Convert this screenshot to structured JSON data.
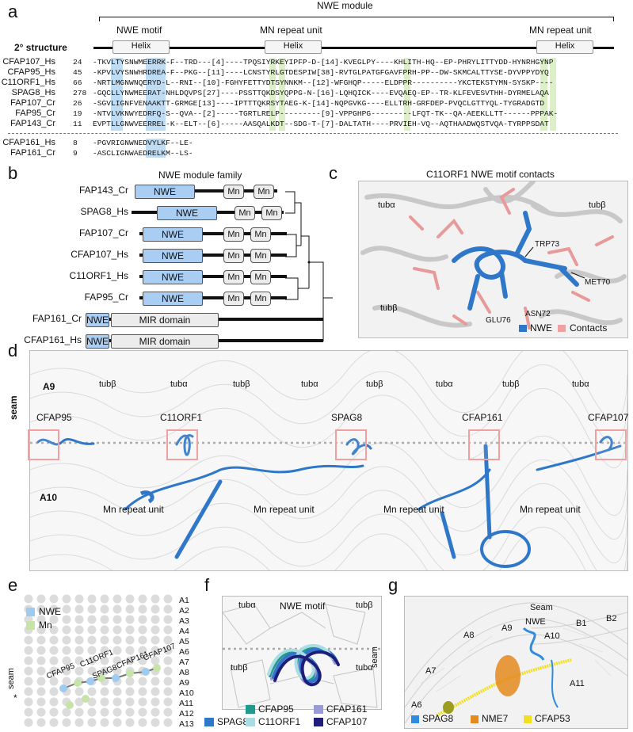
{
  "panel_a": {
    "letter": "a",
    "module_title": "NWE module",
    "motif_label": "NWE motif",
    "mn_label_1": "MN repeat unit",
    "mn_label_2": "MN repeat unit",
    "structure_label": "2° structure",
    "helix_label": "Helix",
    "rows": [
      {
        "name": "CFAP107_Hs",
        "num": "24",
        "seq": "-TKVLTYSNWMEERRK-F--TRD---[4]----TPQSIYRKEYIPFP-D-[14]-KVEGLPY----KHLITH-HQ--EP-PHRYLITTYDD-HYNRHGYNP"
      },
      {
        "name": "CFAP95_Hs",
        "num": "45",
        "seq": "-KPVLVYSNWHRDREA-F--PKG--[11]----LCNSTYRLGTDESPIW[38]-RVTGLPATGFGAVFPRH-PP--DW-SKMCALTTYSE-DYVPPYDYQ"
      },
      {
        "name": "C11ORF1_Hs",
        "num": "66",
        "seq": "-NRTLMGNWNQERYD-L--RNI--[10]-FGHYFETTYDTSYNNKM--[12]-WFGHQP-----ELDPPR----------YKCTEKSTYMN-SYSKP----"
      },
      {
        "name": "SPAG8_Hs",
        "num": "278",
        "seq": "-GQCLLYNWMEERAT-NHLDQVPS[27]----PSSTTQKDSYQPPG-N-[16]-LQHQICK----EVQAEQ-EP--TR-KLFEVESVTHH-DYRMELAQA"
      },
      {
        "name": "FAP107_Cr",
        "num": "26",
        "seq": "-SGVLIGNFVENAAKTT-GRMGE[13]----IPTTTQKRSYTAEG-K-[14]-NQPGVKG----ELLTRH-GRFDEP-PVQCLGTTYQL-TYGRADGTD"
      },
      {
        "name": "FAP95_Cr",
        "num": "19",
        "seq": "-NTVLVKNWYEDRFQ-S--QVA--[2]-----TGRTLRELP---------[9]-VPPGHPG---------LFQT-TK--QA-AEEKLLTT------PPPAK-"
      },
      {
        "name": "FAP143_Cr",
        "num": "11",
        "seq": "EVPTLLGNWVEERREL-K--ELT--[6]-----AASQALKDT--SDG-T-[7]-DALTATH----PRVIEH-VQ--AQTHAADWQSTVQA-TYRPPSDAT"
      },
      {
        "name": "CFAP161_Hs",
        "num": "8",
        "seq": "-PGVRIGNWNEDVYLKF--LE-"
      },
      {
        "name": "FAP161_Cr",
        "num": "9",
        "seq": "-ASCLIGNWAEDRELKM--LS-"
      }
    ]
  },
  "panel_b": {
    "letter": "b",
    "title": "NWE module family",
    "rows": [
      {
        "name": "FAP143_Cr",
        "nwe": "NWE",
        "mn": "Mn"
      },
      {
        "name": "SPAG8_Hs",
        "nwe": "NWE",
        "mn": "Mn"
      },
      {
        "name": "FAP107_Cr",
        "nwe": "NWE",
        "mn": "Mn"
      },
      {
        "name": "CFAP107_Hs",
        "nwe": "NWE",
        "mn": "Mn"
      },
      {
        "name": "C11ORF1_Hs",
        "nwe": "NWE",
        "mn": "Mn"
      },
      {
        "name": "FAP95_Cr",
        "nwe": "NWE",
        "mn": "Mn"
      },
      {
        "name": "FAP161_Cr",
        "nwe": "NWE",
        "mir": "MIR domain"
      },
      {
        "name": "CFAP161_Hs",
        "nwe": "NWE",
        "mir": "MIR domain"
      }
    ]
  },
  "panel_c": {
    "letter": "c",
    "title": "C11ORF1 NWE motif contacts",
    "labels": [
      "tubα",
      "tubβ",
      "tubβ",
      "TRP73",
      "MET70",
      "ASN72",
      "GLU76"
    ],
    "legend_nwe": "NWE",
    "legend_contacts": "Contacts",
    "colors": {
      "nwe": "#2f77c9",
      "contacts": "#f0a0a0"
    }
  },
  "panel_d": {
    "letter": "d",
    "row_labels": [
      "A9",
      "A10"
    ],
    "seam_label": "seam",
    "tub_labels": [
      "tubβ",
      "tubα",
      "tubβ",
      "tubα",
      "tubβ",
      "tubα",
      "tubβ",
      "tubα"
    ],
    "proteins": [
      "CFAP95",
      "C11ORF1",
      "SPAG8",
      "CFAP161",
      "CFAP107"
    ],
    "mn_labels": [
      "Mn repeat unit",
      "Mn repeat unit",
      "Mn repeat unit",
      "Mn repeat unit"
    ]
  },
  "panel_e": {
    "letter": "e",
    "legend_nwe": "NWE",
    "legend_mn": "Mn",
    "seam_label": "seam",
    "star": "*",
    "proteins": [
      "CFAP95",
      "C11ORF1",
      "SPAG8",
      "CFAP161",
      "CFAP107"
    ],
    "rows": [
      "A1",
      "A2",
      "A3",
      "A4",
      "A5",
      "A6",
      "A7",
      "A8",
      "A9",
      "A10",
      "A11",
      "A12",
      "A13"
    ]
  },
  "panel_f": {
    "letter": "f",
    "title": "NWE motif",
    "tubs": [
      "tubα",
      "tubβ",
      "tubβ",
      "tubα"
    ],
    "seam_label": "seam",
    "legend": [
      {
        "name": "CFAP95",
        "color": "#1f9a8c"
      },
      {
        "name": "CFAP161",
        "color": "#9a9ad6"
      },
      {
        "name": "SPAG8",
        "color": "#2f77c9"
      },
      {
        "name": "C11ORF1",
        "color": "#a8dde2"
      },
      {
        "name": "CFAP107",
        "color": "#1e1e7a"
      }
    ]
  },
  "panel_g": {
    "letter": "g",
    "labels": [
      "Seam",
      "NWE",
      "A9",
      "A8",
      "A10",
      "B1",
      "B2",
      "A7",
      "A11",
      "A6"
    ],
    "legend": [
      {
        "name": "SPAG8",
        "color": "#2f8be0"
      },
      {
        "name": "NME7",
        "color": "#e58a1f"
      },
      {
        "name": "CFAP53",
        "color": "#f0e020"
      }
    ]
  }
}
